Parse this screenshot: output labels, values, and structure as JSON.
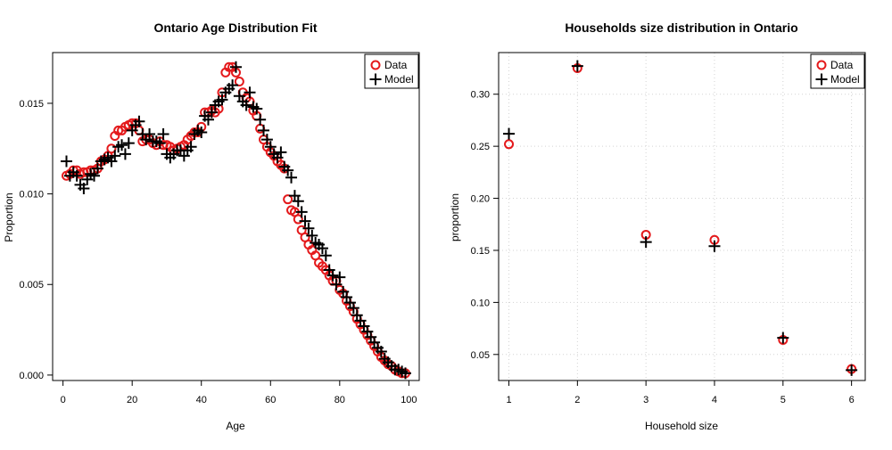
{
  "chart_data": [
    {
      "type": "scatter",
      "title": "Ontario Age Distribution Fit",
      "xlabel": "Age",
      "ylabel": "Proportion",
      "xlim": [
        -3,
        103
      ],
      "ylim": [
        -0.0003,
        0.0178
      ],
      "xticks": [
        0,
        20,
        40,
        60,
        80,
        100
      ],
      "xtick_labels": [
        "0",
        "20",
        "40",
        "60",
        "80",
        "100"
      ],
      "yticks": [
        0.0,
        0.005,
        0.01,
        0.015
      ],
      "ytick_labels": [
        "0.000",
        "0.005",
        "0.010",
        "0.015"
      ],
      "grid": false,
      "legend_position": "top-right",
      "colors": {
        "data": "#e41a1c",
        "model": "#000000"
      },
      "x": [
        1,
        2,
        3,
        4,
        5,
        6,
        7,
        8,
        9,
        10,
        11,
        12,
        13,
        14,
        15,
        16,
        17,
        18,
        19,
        20,
        21,
        22,
        23,
        24,
        25,
        26,
        27,
        28,
        29,
        30,
        31,
        32,
        33,
        34,
        35,
        36,
        37,
        38,
        39,
        40,
        41,
        42,
        43,
        44,
        45,
        46,
        47,
        48,
        49,
        50,
        51,
        52,
        53,
        54,
        55,
        56,
        57,
        58,
        59,
        60,
        61,
        62,
        63,
        64,
        65,
        66,
        67,
        68,
        69,
        70,
        71,
        72,
        73,
        74,
        75,
        76,
        77,
        78,
        79,
        80,
        81,
        82,
        83,
        84,
        85,
        86,
        87,
        88,
        89,
        90,
        91,
        92,
        93,
        94,
        95,
        96,
        97,
        98,
        99
      ],
      "series": [
        {
          "name": "Data",
          "marker": "circle",
          "values": [
            0.011,
            0.0111,
            0.0113,
            0.0113,
            0.0111,
            0.0112,
            0.0112,
            0.0113,
            0.0113,
            0.0114,
            0.0118,
            0.0119,
            0.0121,
            0.0125,
            0.0132,
            0.0135,
            0.0135,
            0.0137,
            0.0138,
            0.0139,
            0.0139,
            0.0135,
            0.0129,
            0.013,
            0.013,
            0.0128,
            0.0127,
            0.0129,
            0.0127,
            0.0127,
            0.0126,
            0.0124,
            0.0125,
            0.0126,
            0.0127,
            0.013,
            0.0132,
            0.0134,
            0.0134,
            0.0137,
            0.0145,
            0.0145,
            0.0146,
            0.0145,
            0.0147,
            0.0156,
            0.0167,
            0.017,
            0.017,
            0.0167,
            0.0162,
            0.0156,
            0.0153,
            0.0151,
            0.0146,
            0.0143,
            0.0136,
            0.013,
            0.0126,
            0.0123,
            0.0121,
            0.0118,
            0.0116,
            0.0114,
            0.0097,
            0.0091,
            0.009,
            0.0086,
            0.008,
            0.0076,
            0.0072,
            0.0069,
            0.0066,
            0.0062,
            0.006,
            0.0058,
            0.0055,
            0.0052,
            0.0052,
            0.0047,
            0.0045,
            0.0041,
            0.0038,
            0.0035,
            0.0031,
            0.0028,
            0.0025,
            0.0022,
            0.0019,
            0.0016,
            0.0013,
            0.001,
            0.0008,
            0.0006,
            0.0005,
            0.0003,
            0.0002,
            0.0001,
            0.0001
          ]
        },
        {
          "name": "Model",
          "marker": "plus",
          "values": [
            0.0118,
            0.011,
            0.0112,
            0.011,
            0.0105,
            0.0103,
            0.0108,
            0.0111,
            0.011,
            0.0114,
            0.0118,
            0.0119,
            0.012,
            0.0118,
            0.0121,
            0.0126,
            0.0127,
            0.0122,
            0.0128,
            0.0135,
            0.0138,
            0.014,
            0.0133,
            0.013,
            0.0133,
            0.0129,
            0.0129,
            0.0128,
            0.0133,
            0.0122,
            0.012,
            0.0122,
            0.0124,
            0.0124,
            0.0121,
            0.0124,
            0.0126,
            0.0133,
            0.0135,
            0.0134,
            0.0143,
            0.0141,
            0.0145,
            0.0149,
            0.0151,
            0.0152,
            0.0156,
            0.0158,
            0.016,
            0.017,
            0.0154,
            0.0151,
            0.0149,
            0.0156,
            0.0148,
            0.0147,
            0.0141,
            0.0135,
            0.013,
            0.0126,
            0.0122,
            0.012,
            0.0123,
            0.0115,
            0.0113,
            0.0109,
            0.0099,
            0.0096,
            0.009,
            0.0085,
            0.0081,
            0.0077,
            0.0073,
            0.0072,
            0.007,
            0.0066,
            0.0058,
            0.0055,
            0.005,
            0.0054,
            0.0046,
            0.0043,
            0.004,
            0.0037,
            0.0033,
            0.003,
            0.0027,
            0.0024,
            0.0021,
            0.0018,
            0.0015,
            0.0013,
            0.0009,
            0.0007,
            0.0005,
            0.0003,
            0.0003,
            0.0002,
            0.0001
          ]
        }
      ]
    },
    {
      "type": "scatter",
      "title": "Households size distribution in Ontario",
      "xlabel": "Household size",
      "ylabel": "proportion",
      "xlim": [
        0.85,
        6.2
      ],
      "ylim": [
        0.025,
        0.34
      ],
      "xticks": [
        1,
        2,
        3,
        4,
        5,
        6
      ],
      "xtick_labels": [
        "1",
        "2",
        "3",
        "4",
        "5",
        "6"
      ],
      "yticks": [
        0.05,
        0.1,
        0.15,
        0.2,
        0.25,
        0.3
      ],
      "ytick_labels": [
        "0.05",
        "0.10",
        "0.15",
        "0.20",
        "0.25",
        "0.30"
      ],
      "grid": true,
      "legend_position": "top-right",
      "colors": {
        "data": "#e41a1c",
        "model": "#000000",
        "grid": "#d3d3d3"
      },
      "x": [
        1,
        2,
        3,
        4,
        5,
        6
      ],
      "series": [
        {
          "name": "Data",
          "marker": "circle",
          "values": [
            0.252,
            0.325,
            0.165,
            0.16,
            0.064,
            0.036
          ]
        },
        {
          "name": "Model",
          "marker": "plus",
          "values": [
            0.262,
            0.327,
            0.158,
            0.154,
            0.066,
            0.035
          ]
        }
      ]
    }
  ]
}
